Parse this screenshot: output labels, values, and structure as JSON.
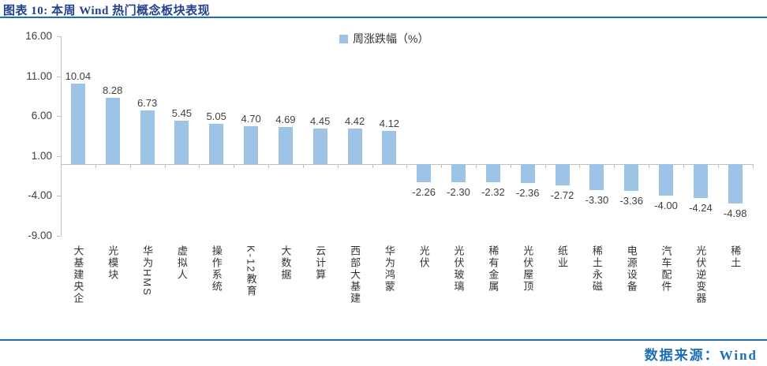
{
  "header": {
    "title": "图表 10: 本周 Wind 热门概念板块表现"
  },
  "footer": {
    "source": "数据来源：Wind"
  },
  "colors": {
    "bar": "#9DC3E6",
    "rule_blue": "#1E6FB8",
    "title_blue": "#24418E",
    "axis_gray": "#BFBFBF",
    "label_dark": "#404040"
  },
  "chart_data": {
    "type": "bar",
    "title": "",
    "legend": [
      "周涨跌幅（%）"
    ],
    "legend_position": "top-center",
    "categories": [
      "大基建央企",
      "光模块",
      "华为HMS",
      "虚拟人",
      "操作系统",
      "K-12教育",
      "大数据",
      "云计算",
      "西部大基建",
      "华为鸿蒙",
      "光伏",
      "光伏玻璃",
      "稀有金属",
      "光伏屋顶",
      "纸业",
      "稀土永磁",
      "电源设备",
      "汽车配件",
      "光伏逆变器",
      "稀土"
    ],
    "values": [
      10.04,
      8.28,
      6.73,
      5.45,
      5.05,
      4.7,
      4.69,
      4.45,
      4.42,
      4.12,
      -2.26,
      -2.3,
      -2.32,
      -2.36,
      -2.72,
      -3.3,
      -3.36,
      -4.0,
      -4.24,
      -4.98
    ],
    "y_ticks": [
      "16.00",
      "11.00",
      "6.00",
      "1.00",
      "-4.00",
      "-9.00"
    ],
    "y_tick_values": [
      16,
      11,
      6,
      1,
      -4,
      -9
    ],
    "ylim": [
      -9,
      16
    ],
    "grid": false,
    "xlabel": "",
    "ylabel": ""
  }
}
